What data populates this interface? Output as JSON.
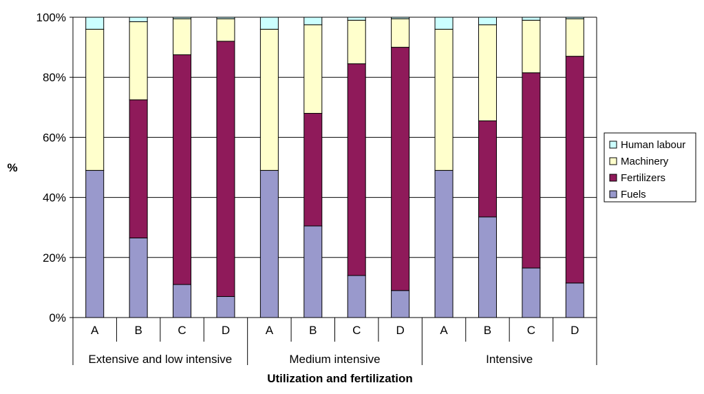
{
  "chart_data": {
    "type": "bar",
    "stacked": true,
    "percent": true,
    "title": "",
    "xlabel": "Utilization and fertilization",
    "ylabel": "%",
    "ylim": [
      0,
      100
    ],
    "yticks": [
      "0%",
      "20%",
      "40%",
      "60%",
      "80%",
      "100%"
    ],
    "groups": [
      "Extensive and low intensive",
      "Medium intensive",
      "Intensive"
    ],
    "categories": [
      "A",
      "B",
      "C",
      "D",
      "A",
      "B",
      "C",
      "D",
      "A",
      "B",
      "C",
      "D"
    ],
    "series": [
      {
        "name": "Fuels",
        "color": "#9999cc",
        "values": [
          49,
          26.5,
          11,
          7,
          49,
          30.5,
          14,
          9,
          49,
          33.5,
          16.5,
          11.5
        ]
      },
      {
        "name": "Fertilizers",
        "color": "#8f1a5a",
        "values": [
          0,
          46,
          76.5,
          85,
          0,
          37.5,
          70.5,
          81,
          0,
          32,
          65,
          75.5
        ]
      },
      {
        "name": "Machinery",
        "color": "#ffffcc",
        "values": [
          47,
          26,
          12,
          7.5,
          47,
          29.5,
          14.5,
          9.5,
          47,
          32,
          17.5,
          12.5
        ]
      },
      {
        "name": "Human labour",
        "color": "#ccffff",
        "values": [
          4,
          1.5,
          0.5,
          0.5,
          4,
          2.5,
          1,
          0.5,
          4,
          2.5,
          1,
          0.5
        ]
      }
    ],
    "legend": {
      "position": "right",
      "entries": [
        "Human labour",
        "Machinery",
        "Fertilizers",
        "Fuels"
      ]
    },
    "grid": true
  }
}
